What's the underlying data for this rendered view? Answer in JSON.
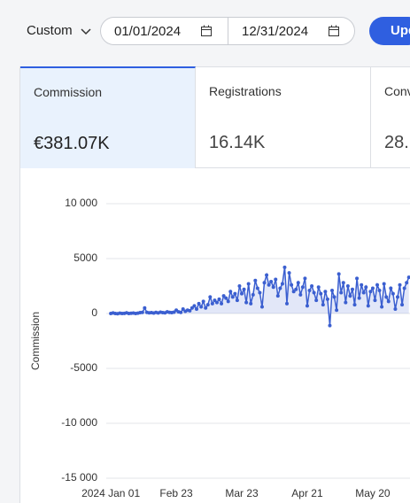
{
  "toolbar": {
    "period": "Custom",
    "start_date": "01/01/2024",
    "end_date": "12/31/2024",
    "button": "Upd"
  },
  "tabs": [
    {
      "label": "Commission",
      "value": "€381.07K"
    },
    {
      "label": "Registrations",
      "value": "16.14K"
    },
    {
      "label": "Conv",
      "value": "28."
    }
  ],
  "chart_data": {
    "type": "line",
    "y_label": "Commission",
    "color": "#3b5fd0",
    "area": true,
    "grid": true,
    "x": [
      0,
      1,
      2,
      3,
      4,
      5,
      6,
      7,
      8,
      9,
      10,
      11,
      12,
      13,
      14,
      15,
      16,
      17,
      18,
      19,
      20,
      21,
      22,
      23,
      24,
      25,
      26,
      27,
      28,
      29,
      30,
      31,
      32,
      33,
      34,
      35,
      36,
      37,
      38,
      39,
      40,
      41,
      42,
      43,
      44,
      45,
      46,
      47,
      48,
      49,
      50,
      51,
      52,
      53,
      54,
      55,
      56,
      57,
      58,
      59,
      60,
      61,
      62,
      63,
      64,
      65,
      66,
      67,
      68,
      69,
      70,
      71,
      72,
      73,
      74,
      75,
      76,
      77,
      78,
      79,
      80,
      81,
      82,
      83,
      84,
      85,
      86,
      87,
      88,
      89,
      90,
      91,
      92,
      93,
      94,
      95,
      96,
      97,
      98,
      99,
      100,
      101,
      102,
      103,
      104,
      105,
      106,
      107,
      108,
      109,
      110,
      111,
      112,
      113,
      114,
      115,
      116,
      117,
      118,
      119,
      120,
      121,
      122,
      123,
      124,
      125,
      126,
      127,
      128,
      129,
      130,
      131,
      132
    ],
    "values": [
      0,
      50,
      0,
      -20,
      30,
      0,
      10,
      60,
      0,
      20,
      40,
      0,
      30,
      80,
      100,
      500,
      100,
      60,
      80,
      40,
      100,
      50,
      120,
      80,
      60,
      150,
      100,
      80,
      120,
      300,
      150,
      100,
      400,
      200,
      300,
      250,
      500,
      700,
      400,
      900,
      600,
      1100,
      500,
      800,
      1500,
      900,
      1200,
      1000,
      1300,
      900,
      1600,
      1400,
      1100,
      2000,
      1500,
      1800,
      1200,
      2500,
      1800,
      2200,
      1000,
      2700,
      900,
      1700,
      3000,
      2300,
      1900,
      600,
      2800,
      3500,
      2600,
      2900,
      2400,
      3100,
      1600,
      2300,
      2700,
      4200,
      900,
      3700,
      2600,
      2000,
      2200,
      2800,
      1700,
      2400,
      3200,
      700,
      2100,
      2500,
      1900,
      1200,
      2400,
      1800,
      800,
      2000,
      1300,
      -1100,
      2100,
      1500,
      300,
      3600,
      1900,
      2800,
      1000,
      2500,
      1600,
      2200,
      800,
      3200,
      1400,
      2600,
      1900,
      2400,
      700,
      2000,
      2300,
      1200,
      2600,
      2100,
      600,
      2700,
      1500,
      1100,
      2300,
      1800,
      400,
      1500,
      2600,
      800,
      2300,
      2800,
      3300
    ],
    "xlim": [
      -2,
      132.5
    ],
    "xticks": [
      {
        "value": 0,
        "label": "2024 Jan 01"
      },
      {
        "value": 29,
        "label": "Feb 23"
      },
      {
        "value": 58,
        "label": "Mar 23"
      },
      {
        "value": 87,
        "label": "Apr 21"
      },
      {
        "value": 116,
        "label": "May 20"
      }
    ],
    "ylim": [
      -15000,
      10000
    ],
    "yticks": [
      {
        "value": 10000,
        "label": "10 000"
      },
      5000,
      0,
      -5000,
      {
        "value": -10000,
        "label": "-10 000"
      },
      {
        "value": -15000,
        "label": "-15 000"
      }
    ]
  }
}
